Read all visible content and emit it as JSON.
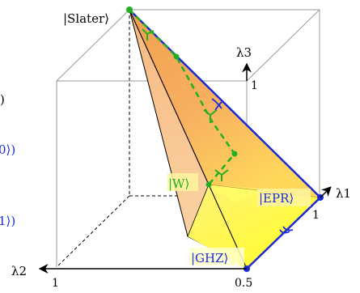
{
  "labels": {
    "slater": "|Slater⟩",
    "w": "|W⟩",
    "epr": "|EPR⟩",
    "ghz": "|GHZ⟩",
    "lambda1": "λ1",
    "lambda2": "λ2",
    "lambda3": "λ3"
  },
  "ticks": {
    "l3_one": "1",
    "l1_one": "1",
    "l2_one": "1",
    "l2_half": "0.5"
  },
  "cut_text": {
    "top": ")",
    "mid": "0⟩)",
    "bottom": "1⟩)"
  },
  "colors": {
    "orange": "#f4a460",
    "yellow": "#ffff33",
    "blue": "#1a2bd6",
    "green": "#22b022"
  }
}
